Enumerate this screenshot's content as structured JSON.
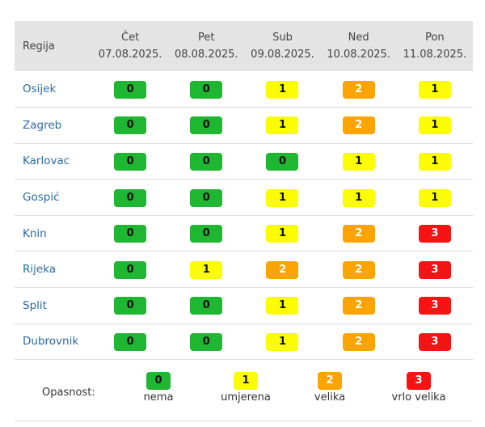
{
  "header": {
    "region_label": "Regija",
    "days": [
      {
        "day": "Čet",
        "date": "07.08.2025."
      },
      {
        "day": "Pet",
        "date": "08.08.2025."
      },
      {
        "day": "Sub",
        "date": "09.08.2025."
      },
      {
        "day": "Ned",
        "date": "10.08.2025."
      },
      {
        "day": "Pon",
        "date": "11.08.2025."
      }
    ]
  },
  "rows": [
    {
      "region": "Osijek",
      "levels": [
        "0",
        "0",
        "1",
        "2",
        "1"
      ]
    },
    {
      "region": "Zagreb",
      "levels": [
        "0",
        "0",
        "1",
        "2",
        "1"
      ]
    },
    {
      "region": "Karlovac",
      "levels": [
        "0",
        "0",
        "0",
        "1",
        "1"
      ]
    },
    {
      "region": "Gospić",
      "levels": [
        "0",
        "0",
        "1",
        "1",
        "1"
      ]
    },
    {
      "region": "Knin",
      "levels": [
        "0",
        "0",
        "1",
        "2",
        "3"
      ]
    },
    {
      "region": "Rijeka",
      "levels": [
        "0",
        "1",
        "2",
        "2",
        "3"
      ]
    },
    {
      "region": "Split",
      "levels": [
        "0",
        "0",
        "1",
        "2",
        "3"
      ]
    },
    {
      "region": "Dubrovnik",
      "levels": [
        "0",
        "0",
        "1",
        "2",
        "3"
      ]
    }
  ],
  "legend": {
    "title": "Opasnost:",
    "items": [
      {
        "level": "0",
        "label": "nema"
      },
      {
        "level": "1",
        "label": "umjerena"
      },
      {
        "level": "2",
        "label": "velika"
      },
      {
        "level": "3",
        "label": "vrlo velika"
      }
    ]
  },
  "colors": {
    "level_0": "#1fb631",
    "level_1": "#fcfc04",
    "level_2": "#fca404",
    "level_3": "#f51313",
    "header_bg": "#e4e4e4",
    "region_link": "#2a6aa8"
  }
}
